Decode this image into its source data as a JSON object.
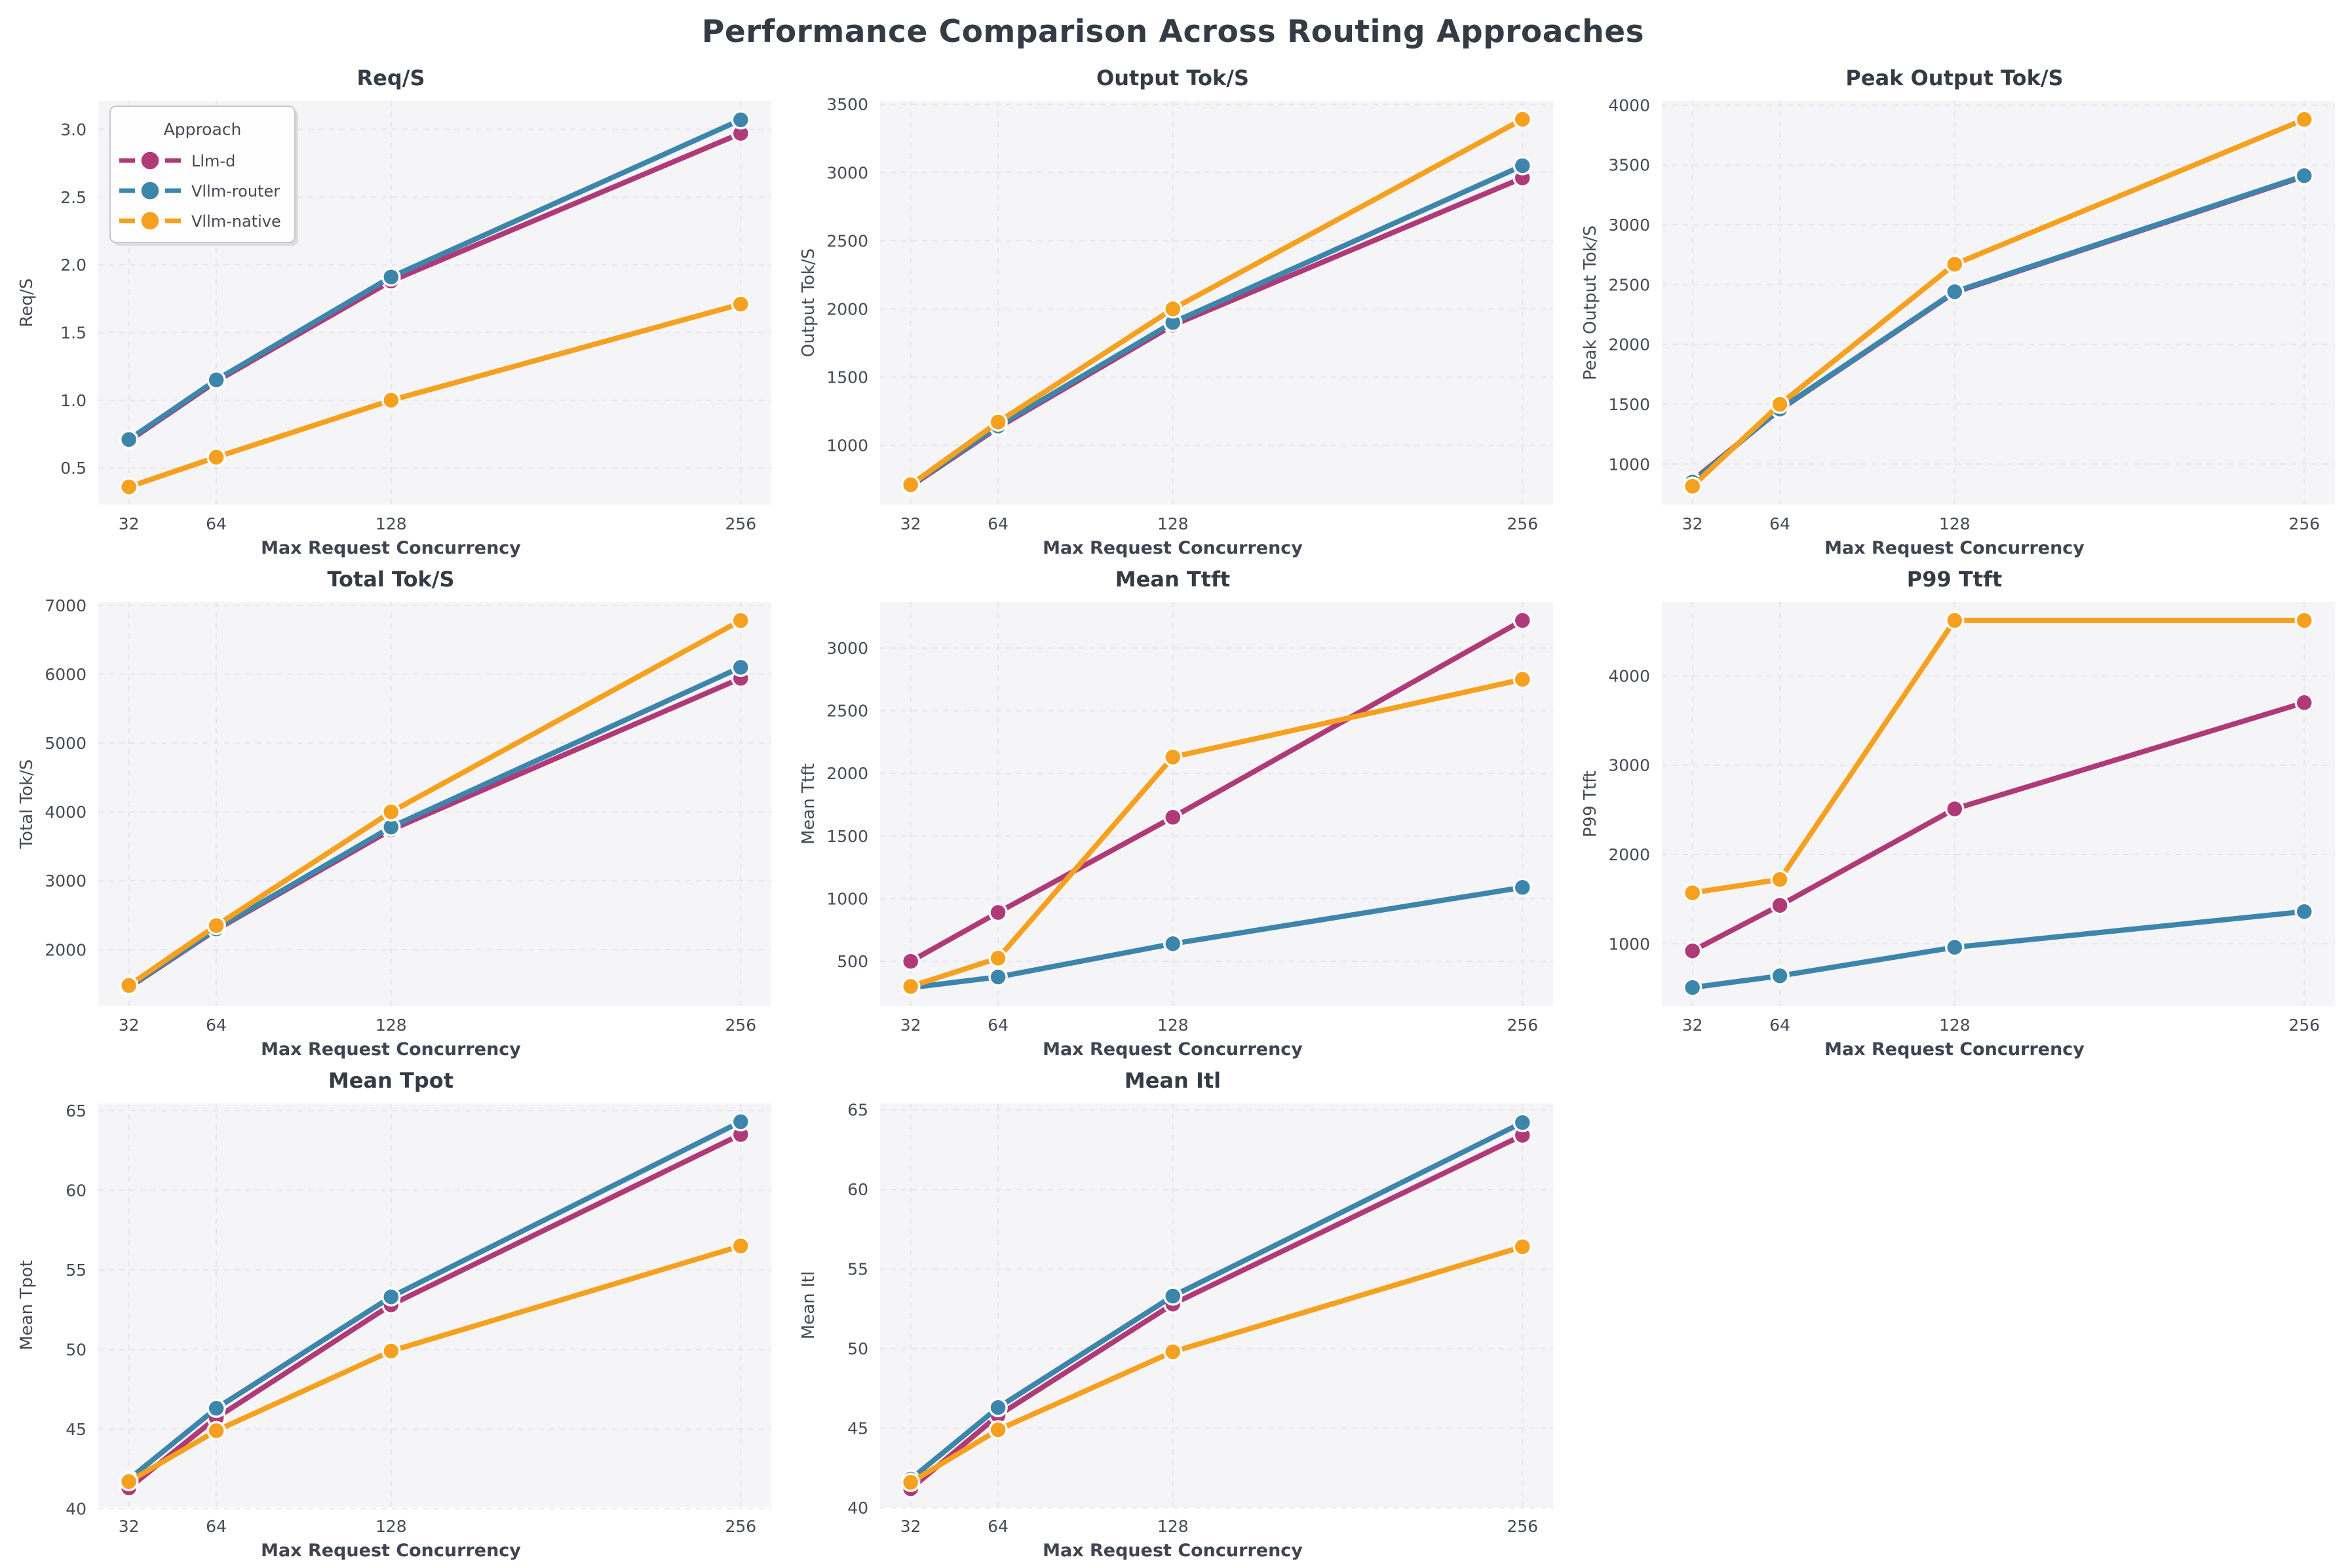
{
  "figure_title": "Performance Comparison Across Routing Approaches",
  "legend": {
    "title": "Approach",
    "items": [
      "Llm-d",
      "Vllm-router",
      "Vllm-native"
    ]
  },
  "style": {
    "plot_bg": "#f5f5f7",
    "grid_color": "#e6e6ec",
    "tick_color": "#454b55",
    "title_color": "#343b44",
    "llm_d_color": "#b03a78",
    "vllm_router_color": "#3d86ab",
    "vllm_native_color": "#f5a01e",
    "marker_edge": "#fcfcfc",
    "legend_bg": "#fefefe",
    "legend_border": "#c8c8c8"
  },
  "chart_data": [
    {
      "type": "line",
      "title": "Req/S",
      "ylabel": "Req/S",
      "xlabel": "Max Request Concurrency",
      "x": [
        32,
        64,
        128,
        256
      ],
      "xticks": [
        32,
        64,
        128,
        256
      ],
      "xtick_labels": [
        "32",
        "64",
        "128",
        "256"
      ],
      "xlim": [
        20.8,
        267.2
      ],
      "ylim": [
        0.23,
        3.21
      ],
      "yticks": [
        0.5,
        1.0,
        1.5,
        2.0,
        2.5,
        3.0
      ],
      "ytick_labels": [
        "0.5",
        "1.0",
        "1.5",
        "2.0",
        "2.5",
        "3.0"
      ],
      "show_legend": true,
      "grid": true,
      "legend_position": "upper-left",
      "series": [
        {
          "name": "Llm-d",
          "color": "#b03a78",
          "values": [
            0.7,
            1.14,
            1.88,
            2.97
          ]
        },
        {
          "name": "Vllm-router",
          "color": "#3d86ab",
          "values": [
            0.71,
            1.15,
            1.91,
            3.07
          ]
        },
        {
          "name": "Vllm-native",
          "color": "#f5a01e",
          "values": [
            0.36,
            0.58,
            1.0,
            1.71
          ]
        }
      ]
    },
    {
      "type": "line",
      "title": "Output Tok/S",
      "ylabel": "Output Tok/S",
      "xlabel": "Max Request Concurrency",
      "x": [
        32,
        64,
        128,
        256
      ],
      "xticks": [
        32,
        64,
        128,
        256
      ],
      "xtick_labels": [
        "32",
        "64",
        "128",
        "256"
      ],
      "xlim": [
        20.8,
        267.2
      ],
      "ylim": [
        565,
        3525
      ],
      "yticks": [
        1000,
        1500,
        2000,
        2500,
        3000,
        3500
      ],
      "ytick_labels": [
        "1000",
        "1500",
        "2000",
        "2500",
        "3000",
        "3500"
      ],
      "show_legend": false,
      "grid": true,
      "series": [
        {
          "name": "Llm-d",
          "color": "#b03a78",
          "values": [
            700,
            1130,
            1880,
            2960
          ]
        },
        {
          "name": "Vllm-router",
          "color": "#3d86ab",
          "values": [
            705,
            1140,
            1900,
            3050
          ]
        },
        {
          "name": "Vllm-native",
          "color": "#f5a01e",
          "values": [
            710,
            1170,
            2000,
            3390
          ]
        }
      ]
    },
    {
      "type": "line",
      "title": "Peak Output Tok/S",
      "ylabel": "Peak Output Tok/S",
      "xlabel": "Max Request Concurrency",
      "x": [
        32,
        64,
        128,
        256
      ],
      "xticks": [
        32,
        64,
        128,
        256
      ],
      "xtick_labels": [
        "32",
        "64",
        "128",
        "256"
      ],
      "xlim": [
        20.8,
        267.2
      ],
      "ylim": [
        662,
        4035
      ],
      "yticks": [
        1000,
        1500,
        2000,
        2500,
        3000,
        3500,
        4000
      ],
      "ytick_labels": [
        "1000",
        "1500",
        "2000",
        "2500",
        "3000",
        "3500",
        "4000"
      ],
      "show_legend": false,
      "grid": true,
      "series": [
        {
          "name": "Llm-d",
          "color": "#b03a78",
          "values": [
            862,
            1455,
            2435,
            3405
          ]
        },
        {
          "name": "Vllm-router",
          "color": "#3d86ab",
          "values": [
            850,
            1460,
            2440,
            3410
          ]
        },
        {
          "name": "Vllm-native",
          "color": "#f5a01e",
          "values": [
            815,
            1500,
            2670,
            3880
          ]
        }
      ]
    },
    {
      "type": "line",
      "title": "Total Tok/S",
      "ylabel": "Total Tok/S",
      "xlabel": "Max Request Concurrency",
      "x": [
        32,
        64,
        128,
        256
      ],
      "xticks": [
        32,
        64,
        128,
        256
      ],
      "xtick_labels": [
        "32",
        "64",
        "128",
        "256"
      ],
      "xlim": [
        20.8,
        267.2
      ],
      "ylim": [
        1184,
        7046
      ],
      "yticks": [
        2000,
        3000,
        4000,
        5000,
        6000,
        7000
      ],
      "ytick_labels": [
        "2000",
        "3000",
        "4000",
        "5000",
        "6000",
        "7000"
      ],
      "show_legend": false,
      "grid": true,
      "series": [
        {
          "name": "Llm-d",
          "color": "#b03a78",
          "values": [
            1450,
            2290,
            3740,
            5940
          ]
        },
        {
          "name": "Vllm-router",
          "color": "#3d86ab",
          "values": [
            1460,
            2300,
            3780,
            6100
          ]
        },
        {
          "name": "Vllm-native",
          "color": "#f5a01e",
          "values": [
            1480,
            2350,
            4000,
            6780
          ]
        }
      ]
    },
    {
      "type": "line",
      "title": "Mean Ttft",
      "ylabel": "Mean Ttft",
      "xlabel": "Max Request Concurrency",
      "x": [
        32,
        64,
        128,
        256
      ],
      "xticks": [
        32,
        64,
        128,
        256
      ],
      "xtick_labels": [
        "32",
        "64",
        "128",
        "256"
      ],
      "xlim": [
        20.8,
        267.2
      ],
      "ylim": [
        145,
        3366
      ],
      "yticks": [
        500,
        1000,
        1500,
        2000,
        2500,
        3000
      ],
      "ytick_labels": [
        "500",
        "1000",
        "1500",
        "2000",
        "2500",
        "3000"
      ],
      "show_legend": false,
      "grid": true,
      "series": [
        {
          "name": "Llm-d",
          "color": "#b03a78",
          "values": [
            500,
            890,
            1650,
            3220
          ]
        },
        {
          "name": "Vllm-router",
          "color": "#3d86ab",
          "values": [
            290,
            375,
            640,
            1090
          ]
        },
        {
          "name": "Vllm-native",
          "color": "#f5a01e",
          "values": [
            300,
            525,
            2130,
            2750
          ]
        }
      ]
    },
    {
      "type": "line",
      "title": "P99 Ttft",
      "ylabel": "P99 Ttft",
      "xlabel": "Max Request Concurrency",
      "x": [
        32,
        64,
        128,
        256
      ],
      "xticks": [
        32,
        64,
        128,
        256
      ],
      "xtick_labels": [
        "32",
        "64",
        "128",
        "256"
      ],
      "xlim": [
        20.8,
        267.2
      ],
      "ylim": [
        305,
        4825
      ],
      "yticks": [
        1000,
        2000,
        3000,
        4000
      ],
      "ytick_labels": [
        "1000",
        "2000",
        "3000",
        "4000"
      ],
      "show_legend": false,
      "grid": true,
      "series": [
        {
          "name": "Llm-d",
          "color": "#b03a78",
          "values": [
            920,
            1430,
            2510,
            3700
          ]
        },
        {
          "name": "Vllm-router",
          "color": "#3d86ab",
          "values": [
            510,
            640,
            960,
            1360
          ]
        },
        {
          "name": "Vllm-native",
          "color": "#f5a01e",
          "values": [
            1570,
            1720,
            4620,
            4620
          ]
        }
      ]
    },
    {
      "type": "line",
      "title": "Mean Tpot",
      "ylabel": "Mean Tpot",
      "xlabel": "Max Request Concurrency",
      "x": [
        32,
        64,
        128,
        256
      ],
      "xticks": [
        32,
        64,
        128,
        256
      ],
      "xtick_labels": [
        "32",
        "64",
        "128",
        "256"
      ],
      "xlim": [
        20.8,
        267.2
      ],
      "ylim": [
        40.1,
        65.45
      ],
      "yticks": [
        40,
        45,
        50,
        55,
        60,
        65
      ],
      "ytick_labels": [
        "40",
        "45",
        "50",
        "55",
        "60",
        "65"
      ],
      "show_legend": false,
      "grid": true,
      "series": [
        {
          "name": "Llm-d",
          "color": "#b03a78",
          "values": [
            41.3,
            45.7,
            52.8,
            63.5
          ]
        },
        {
          "name": "Vllm-router",
          "color": "#3d86ab",
          "values": [
            41.85,
            46.3,
            53.3,
            64.3
          ]
        },
        {
          "name": "Vllm-native",
          "color": "#f5a01e",
          "values": [
            41.7,
            44.9,
            49.9,
            56.5
          ]
        }
      ]
    },
    {
      "type": "line",
      "title": "Mean Itl",
      "ylabel": "Mean Itl",
      "xlabel": "Max Request Concurrency",
      "x": [
        32,
        64,
        128,
        256
      ],
      "xticks": [
        32,
        64,
        128,
        256
      ],
      "xtick_labels": [
        "32",
        "64",
        "128",
        "256"
      ],
      "xlim": [
        20.8,
        267.2
      ],
      "ylim": [
        40.05,
        65.4
      ],
      "yticks": [
        40,
        45,
        50,
        55,
        60,
        65
      ],
      "ytick_labels": [
        "40",
        "45",
        "50",
        "55",
        "60",
        "65"
      ],
      "show_legend": false,
      "grid": true,
      "series": [
        {
          "name": "Llm-d",
          "color": "#b03a78",
          "values": [
            41.2,
            45.8,
            52.8,
            63.4
          ]
        },
        {
          "name": "Vllm-router",
          "color": "#3d86ab",
          "values": [
            41.8,
            46.3,
            53.3,
            64.2
          ]
        },
        {
          "name": "Vllm-native",
          "color": "#f5a01e",
          "values": [
            41.6,
            44.9,
            49.8,
            56.4
          ]
        }
      ]
    }
  ]
}
